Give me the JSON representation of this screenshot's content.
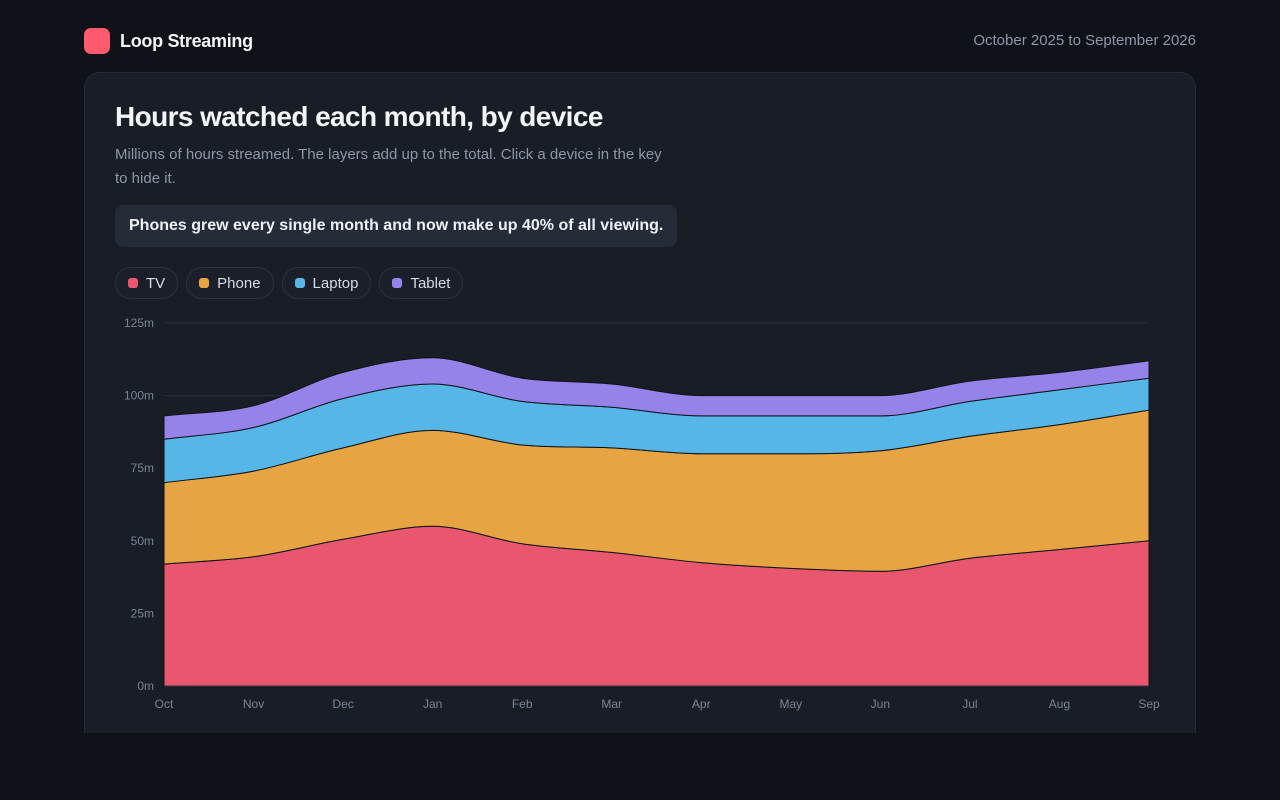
{
  "app": {
    "name": "Loop Streaming",
    "date_range": "October 2025 to September 2026",
    "logo_color": "#ff5a6e"
  },
  "header": {
    "title": "Hours watched each month, by device",
    "subtitle": "Millions of hours streamed. The layers add up to the total. Click a device in the key to hide it.",
    "insight": "Phones grew every single month and now make up 40% of all viewing."
  },
  "legend": [
    {
      "label": "TV",
      "color": "#e8576e"
    },
    {
      "label": "Phone",
      "color": "#e6a443"
    },
    {
      "label": "Laptop",
      "color": "#56b6e8"
    },
    {
      "label": "Tablet",
      "color": "#9683ea"
    }
  ],
  "chart_data": {
    "type": "area",
    "stacked": true,
    "categories": [
      "Oct",
      "Nov",
      "Dec",
      "Jan",
      "Feb",
      "Mar",
      "Apr",
      "May",
      "Jun",
      "Jul",
      "Aug",
      "Sep"
    ],
    "series": [
      {
        "name": "TV",
        "color": "#e8576e",
        "values": [
          42,
          44.5,
          50.5,
          55,
          49,
          46,
          42.5,
          40.5,
          39.5,
          44,
          47,
          50
        ]
      },
      {
        "name": "Phone",
        "color": "#e6a443",
        "values": [
          28,
          29.5,
          31.5,
          33,
          34,
          36,
          37.5,
          39.5,
          41.5,
          42,
          43,
          45
        ]
      },
      {
        "name": "Laptop",
        "color": "#56b6e8",
        "values": [
          15,
          15,
          17,
          16,
          15,
          14,
          13,
          13,
          12,
          12,
          12,
          11
        ]
      },
      {
        "name": "Tablet",
        "color": "#9683ea",
        "values": [
          8,
          7.5,
          9,
          9,
          8,
          8,
          7,
          7,
          7,
          7,
          6,
          6
        ]
      }
    ],
    "y_ticks": [
      "0m",
      "25m",
      "50m",
      "75m",
      "100m",
      "125m"
    ],
    "ylim": [
      0,
      125
    ],
    "grid": true
  }
}
